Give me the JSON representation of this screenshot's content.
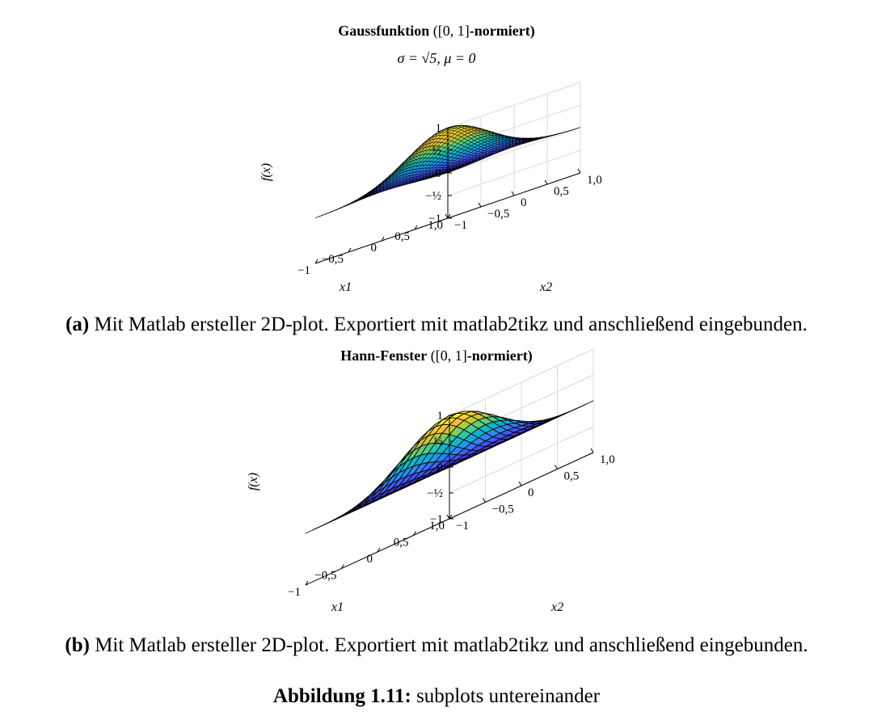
{
  "chart_data": [
    {
      "type": "surface",
      "title_bold": "Gaussfunktion",
      "title_math": "([0, 1]",
      "title_suffix": "-normiert)",
      "subtitle": "σ = √5, μ = 0",
      "function": "gaussian",
      "params": {
        "sigma": 2.2360679775,
        "mu": 0
      },
      "grid_n": 40,
      "xlabel": "x1",
      "ylabel": "x2",
      "zlabel": "f(x)",
      "xlim": [
        -1,
        1
      ],
      "ylim": [
        -1,
        1
      ],
      "zlim": [
        -1,
        1
      ],
      "x_ticks": [
        "−1",
        "−0,5",
        "0",
        "0,5",
        "1,0"
      ],
      "y_ticks": [
        "−1",
        "−0,5",
        "0",
        "0,5",
        "1,0"
      ],
      "z_ticks": [
        "1",
        "½",
        "0",
        "−½",
        "−1"
      ],
      "z_tick_values": [
        1,
        0.5,
        0,
        -0.5,
        -1
      ],
      "colormap": "parula",
      "grid": true,
      "caption_label": "(a)",
      "caption_text": "Mit Matlab ersteller 2D-plot. Exportiert mit matlab2tikz und anschließend eingebunden."
    },
    {
      "type": "surface",
      "title_bold": "Hann-Fenster",
      "title_math": "([0, 1]",
      "title_suffix": "-normiert)",
      "subtitle": "",
      "function": "hann",
      "grid_n": 20,
      "xlabel": "x1",
      "ylabel": "x2",
      "zlabel": "f(x)",
      "xlim": [
        -1,
        1
      ],
      "ylim": [
        -1,
        1
      ],
      "zlim": [
        -1,
        1
      ],
      "x_ticks": [
        "−1",
        "−0,5",
        "0",
        "0,5",
        "1,0"
      ],
      "y_ticks": [
        "−1",
        "−0,5",
        "0",
        "0,5",
        "1,0"
      ],
      "z_ticks": [
        "1",
        "½",
        "0",
        "−½",
        "−1"
      ],
      "z_tick_values": [
        1,
        0.5,
        0,
        -0.5,
        -1
      ],
      "colormap": "parula",
      "grid": true,
      "caption_label": "(b)",
      "caption_text": "Mit Matlab ersteller 2D-plot. Exportiert mit matlab2tikz und anschließend eingebunden."
    }
  ],
  "figure_caption": {
    "label": "Abbildung 1.11:",
    "text": "subplots untereinander"
  }
}
